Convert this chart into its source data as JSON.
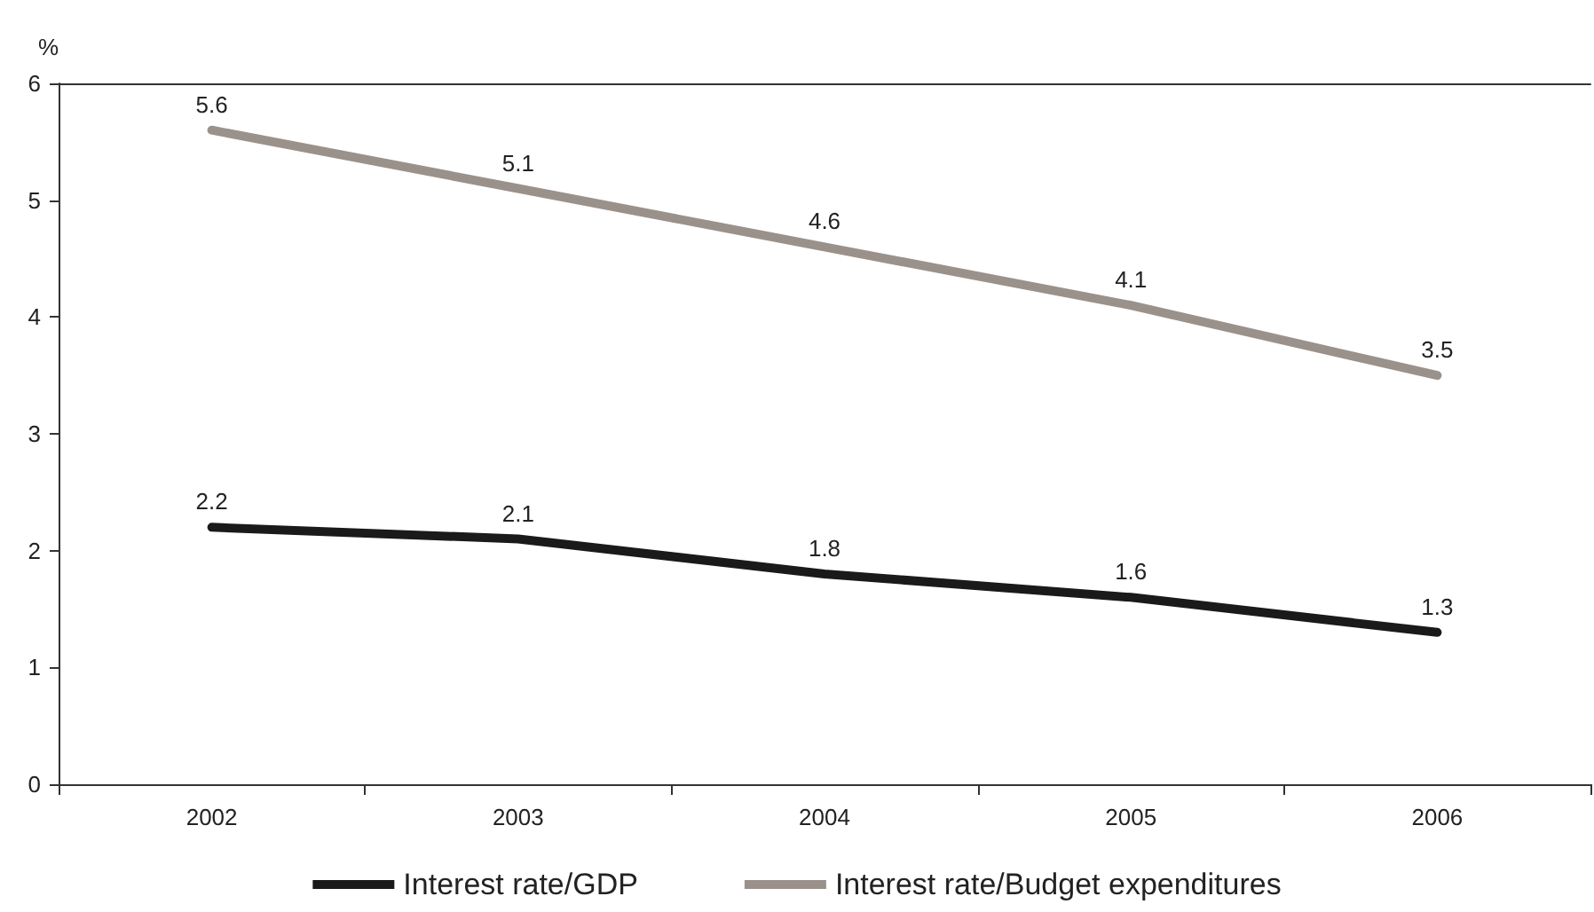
{
  "chart_data": {
    "type": "line",
    "ylabel": "%",
    "categories": [
      "2002",
      "2003",
      "2004",
      "2005",
      "2006"
    ],
    "series": [
      {
        "name": "Interest rate/GDP",
        "color": "#1a1a1a",
        "values": [
          2.2,
          2.1,
          1.8,
          1.6,
          1.3
        ]
      },
      {
        "name": "Interest rate/Budget expenditures",
        "color": "#9b918b",
        "values": [
          5.6,
          5.1,
          4.6,
          4.1,
          3.5
        ]
      }
    ],
    "ylim": [
      0,
      6
    ],
    "yticks": [
      0,
      1,
      2,
      3,
      4,
      5,
      6
    ],
    "grid": false,
    "legend": "bottom",
    "marker": "none",
    "line_style": "solid",
    "data_labels": true
  }
}
